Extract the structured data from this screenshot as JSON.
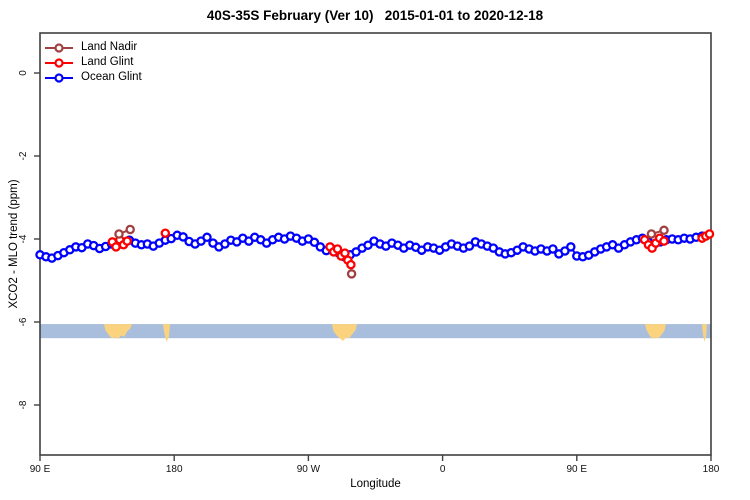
{
  "chart_data": {
    "type": "scatter",
    "title": "40S-35S February (Ver 10)   2015-01-01 to 2020-12-18",
    "xlabel": "Longitude",
    "ylabel": "XCO2 - MLO trend (ppm)",
    "x_axis": {
      "note_deg_offset_from_90E_wrapping_east": true,
      "range_deg": [
        0,
        450
      ],
      "ticks": [
        {
          "pos": 0,
          "label": "90 E"
        },
        {
          "pos": 90,
          "label": "180"
        },
        {
          "pos": 180,
          "label": "90 W"
        },
        {
          "pos": 270,
          "label": "0"
        },
        {
          "pos": 360,
          "label": "90 E"
        },
        {
          "pos": 450,
          "label": "180"
        }
      ]
    },
    "y_axis": {
      "range": [
        -9.2,
        1.0
      ],
      "ticks": [
        {
          "value": 0,
          "label": "0"
        },
        {
          "value": -2,
          "label": "-2"
        },
        {
          "value": -4,
          "label": "-4"
        },
        {
          "value": -6,
          "label": "-6"
        },
        {
          "value": -8,
          "label": "-8"
        }
      ]
    },
    "land_ocean_band": {
      "ocean_color": "#A9BEDC",
      "land_color": "#FBD37E",
      "top_ppm": -6.05,
      "bottom_ppm": -6.39,
      "land_segments": [
        {
          "name": "australia",
          "from_deg": 42.9,
          "to_deg": 61.7,
          "profile": [
            0.45,
            0.75,
            1.0,
            0.95,
            1.05,
            0.8,
            0.9,
            0.5,
            0.3
          ]
        },
        {
          "name": "new-zealand",
          "from_deg": 82.5,
          "to_deg": 87.2,
          "profile": [
            0.6,
            1.25,
            0.9
          ]
        },
        {
          "name": "south-america",
          "from_deg": 195.8,
          "to_deg": 212.6,
          "profile": [
            0.5,
            0.8,
            1.0,
            1.2,
            0.95,
            1.0,
            0.7,
            0.45
          ]
        },
        {
          "name": "australia-2",
          "from_deg": 405.7,
          "to_deg": 419.8,
          "profile": [
            0.4,
            0.8,
            1.05,
            0.95,
            1.0,
            0.75,
            0.45
          ]
        },
        {
          "name": "new-zealand-2",
          "from_deg": 443.9,
          "to_deg": 447.3,
          "profile": [
            0.6,
            1.25,
            0.85
          ]
        }
      ]
    },
    "series": [
      {
        "name": "Ocean Glint",
        "color": "#0000FF",
        "marker": "open-circle",
        "segments": [
          [
            [
              0,
              -4.38
            ],
            [
              4,
              -4.43
            ],
            [
              8,
              -4.46
            ],
            [
              12,
              -4.4
            ],
            [
              16,
              -4.33
            ],
            [
              20,
              -4.26
            ],
            [
              24,
              -4.19
            ],
            [
              28,
              -4.21
            ],
            [
              32,
              -4.12
            ],
            [
              36,
              -4.16
            ],
            [
              40,
              -4.23
            ],
            [
              44,
              -4.18
            ],
            [
              48,
              -4.12
            ],
            [
              52,
              -4.15
            ],
            [
              56,
              -4.08
            ],
            [
              60,
              -4.03
            ],
            [
              64,
              -4.1
            ],
            [
              68,
              -4.14
            ],
            [
              72,
              -4.12
            ],
            [
              76,
              -4.17
            ],
            [
              80,
              -4.1
            ],
            [
              84,
              -4.03
            ],
            [
              88,
              -3.99
            ],
            [
              92,
              -3.91
            ],
            [
              96,
              -3.95
            ],
            [
              100,
              -4.06
            ],
            [
              104,
              -4.12
            ],
            [
              108,
              -4.05
            ],
            [
              112,
              -3.96
            ],
            [
              116,
              -4.1
            ],
            [
              120,
              -4.19
            ],
            [
              124,
              -4.12
            ],
            [
              128,
              -4.03
            ],
            [
              132,
              -4.07
            ],
            [
              136,
              -3.98
            ],
            [
              140,
              -4.05
            ],
            [
              144,
              -3.96
            ],
            [
              148,
              -4.02
            ],
            [
              152,
              -4.1
            ],
            [
              156,
              -4.02
            ],
            [
              160,
              -3.96
            ],
            [
              164,
              -4.0
            ],
            [
              168,
              -3.93
            ],
            [
              172,
              -3.98
            ],
            [
              176,
              -4.05
            ],
            [
              180,
              -4.0
            ],
            [
              184,
              -4.08
            ],
            [
              188,
              -4.19
            ],
            [
              192,
              -4.28
            ],
            [
              196,
              -4.24
            ],
            [
              200,
              -4.33
            ],
            [
              204,
              -4.43
            ],
            [
              208,
              -4.38
            ],
            [
              212,
              -4.31
            ],
            [
              216,
              -4.22
            ],
            [
              220,
              -4.15
            ],
            [
              224,
              -4.05
            ],
            [
              228,
              -4.12
            ],
            [
              232,
              -4.17
            ],
            [
              236,
              -4.1
            ],
            [
              240,
              -4.15
            ],
            [
              244,
              -4.22
            ],
            [
              248,
              -4.15
            ],
            [
              252,
              -4.2
            ],
            [
              256,
              -4.27
            ],
            [
              260,
              -4.19
            ],
            [
              264,
              -4.22
            ],
            [
              268,
              -4.27
            ],
            [
              272,
              -4.19
            ],
            [
              276,
              -4.12
            ],
            [
              280,
              -4.17
            ],
            [
              284,
              -4.22
            ],
            [
              288,
              -4.17
            ],
            [
              292,
              -4.07
            ],
            [
              296,
              -4.12
            ],
            [
              300,
              -4.17
            ],
            [
              304,
              -4.22
            ],
            [
              308,
              -4.31
            ],
            [
              312,
              -4.36
            ],
            [
              316,
              -4.33
            ],
            [
              320,
              -4.27
            ],
            [
              324,
              -4.19
            ],
            [
              328,
              -4.24
            ],
            [
              332,
              -4.29
            ],
            [
              336,
              -4.24
            ],
            [
              340,
              -4.29
            ],
            [
              344,
              -4.24
            ],
            [
              348,
              -4.36
            ],
            [
              352,
              -4.29
            ],
            [
              356,
              -4.19
            ],
            [
              360,
              -4.41
            ],
            [
              364,
              -4.43
            ],
            [
              368,
              -4.39
            ],
            [
              372,
              -4.31
            ],
            [
              376,
              -4.24
            ],
            [
              380,
              -4.19
            ],
            [
              384,
              -4.14
            ],
            [
              388,
              -4.22
            ],
            [
              392,
              -4.14
            ],
            [
              396,
              -4.07
            ],
            [
              400,
              -4.02
            ],
            [
              404,
              -3.98
            ],
            [
              408,
              -4.07
            ],
            [
              412,
              -4.12
            ],
            [
              416,
              -4.07
            ],
            [
              420,
              -4.02
            ],
            [
              424,
              -4.0
            ],
            [
              428,
              -4.02
            ],
            [
              432,
              -3.98
            ],
            [
              436,
              -4.0
            ],
            [
              440,
              -3.96
            ],
            [
              444,
              -3.93
            ]
          ]
        ]
      },
      {
        "name": "Land Glint",
        "color": "#FF0000",
        "marker": "open-circle",
        "segments": [
          [
            [
              48.5,
              -4.07
            ],
            [
              51,
              -4.19
            ],
            [
              53.5,
              -4.02
            ],
            [
              56,
              -4.14
            ],
            [
              58.5,
              -4.05
            ]
          ],
          [
            [
              84,
              -3.86
            ]
          ],
          [
            [
              194.5,
              -4.19
            ],
            [
              197,
              -4.31
            ],
            [
              199.5,
              -4.24
            ],
            [
              202,
              -4.41
            ],
            [
              204.5,
              -4.34
            ],
            [
              206.5,
              -4.51
            ],
            [
              208.5,
              -4.62
            ]
          ],
          [
            [
              405.5,
              -4.02
            ],
            [
              408,
              -4.14
            ],
            [
              410.5,
              -4.22
            ],
            [
              413,
              -4.1
            ],
            [
              415.5,
              -3.98
            ],
            [
              418.5,
              -4.05
            ]
          ],
          [
            [
              444,
              -3.98
            ],
            [
              446.5,
              -3.93
            ],
            [
              449,
              -3.88
            ]
          ]
        ]
      },
      {
        "name": "Land Nadir",
        "color": "#A04040",
        "marker": "open-circle",
        "segments": [
          [
            [
              53,
              -3.88
            ],
            [
              60.5,
              -3.77
            ]
          ],
          [
            [
              209,
              -4.84
            ]
          ],
          [
            [
              410,
              -3.88
            ],
            [
              418.5,
              -3.79
            ]
          ]
        ]
      }
    ],
    "legend": {
      "position": "top-left",
      "items": [
        {
          "label": "Land Nadir",
          "color": "#A04040"
        },
        {
          "label": "Land Glint",
          "color": "#FF0000"
        },
        {
          "label": "Ocean Glint",
          "color": "#0000FF"
        }
      ]
    },
    "frame_color": "#404040",
    "grid": false
  }
}
